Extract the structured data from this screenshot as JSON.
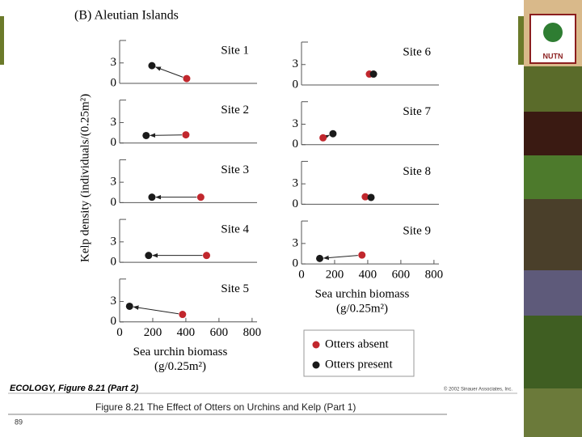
{
  "figure": {
    "title": "(B)  Aleutian Islands",
    "ylabel": "Kelp density (individuals/(0.25m²)",
    "xlabel_line1": "Sea urchin biomass",
    "xlabel_line2": "(g/0.25m²)",
    "legend": [
      {
        "name": "Otters absent",
        "color": "#c1272d"
      },
      {
        "name": "Otters present",
        "color": "#1a1a1a"
      }
    ],
    "credit": "ECOLOGY, Figure 8.21 (Part 2)",
    "copyright": "© 2002 Sinauer Associates, Inc."
  },
  "chart_data": [
    {
      "type": "scatter",
      "title": "Site 1",
      "xlim": [
        0,
        830
      ],
      "ylim": [
        0,
        6.3
      ],
      "yticks": [
        0,
        3
      ],
      "absent": {
        "x": 405,
        "y": 0.7
      },
      "present": {
        "x": 195,
        "y": 2.6
      }
    },
    {
      "type": "scatter",
      "title": "Site 2",
      "xlim": [
        0,
        830
      ],
      "ylim": [
        0,
        6.3
      ],
      "yticks": [
        0,
        3
      ],
      "absent": {
        "x": 400,
        "y": 1.2
      },
      "present": {
        "x": 160,
        "y": 1.1
      }
    },
    {
      "type": "scatter",
      "title": "Site 3",
      "xlim": [
        0,
        830
      ],
      "ylim": [
        0,
        6.3
      ],
      "yticks": [
        0,
        3
      ],
      "absent": {
        "x": 490,
        "y": 0.8
      },
      "present": {
        "x": 195,
        "y": 0.8
      }
    },
    {
      "type": "scatter",
      "title": "Site 4",
      "xlim": [
        0,
        830
      ],
      "ylim": [
        0,
        6.3
      ],
      "yticks": [
        0,
        3
      ],
      "absent": {
        "x": 525,
        "y": 1.0
      },
      "present": {
        "x": 175,
        "y": 1.0
      }
    },
    {
      "type": "scatter",
      "title": "Site 5",
      "xlim": [
        0,
        830
      ],
      "ylim": [
        0,
        6.3
      ],
      "yticks": [
        0,
        3
      ],
      "xticks": [
        0,
        200,
        400,
        600,
        800
      ],
      "absent": {
        "x": 380,
        "y": 1.1
      },
      "present": {
        "x": 60,
        "y": 2.3
      }
    },
    {
      "type": "scatter",
      "title": "Site 6",
      "xlim": [
        0,
        830
      ],
      "ylim": [
        0,
        6.3
      ],
      "yticks": [
        0,
        3
      ],
      "absent": {
        "x": 410,
        "y": 1.6
      },
      "present": {
        "x": 435,
        "y": 1.6
      }
    },
    {
      "type": "scatter",
      "title": "Site 7",
      "xlim": [
        0,
        830
      ],
      "ylim": [
        0,
        6.3
      ],
      "yticks": [
        0,
        3
      ],
      "absent": {
        "x": 130,
        "y": 1.0
      },
      "present": {
        "x": 190,
        "y": 1.6
      }
    },
    {
      "type": "scatter",
      "title": "Site 8",
      "xlim": [
        0,
        830
      ],
      "ylim": [
        0,
        6.3
      ],
      "yticks": [
        0,
        3
      ],
      "absent": {
        "x": 385,
        "y": 1.1
      },
      "present": {
        "x": 420,
        "y": 1.0
      }
    },
    {
      "type": "scatter",
      "title": "Site 9",
      "xlim": [
        0,
        830
      ],
      "ylim": [
        0,
        6.3
      ],
      "yticks": [
        0,
        3
      ],
      "xticks": [
        0,
        200,
        400,
        600,
        800
      ],
      "absent": {
        "x": 365,
        "y": 1.3
      },
      "present": {
        "x": 110,
        "y": 0.8
      }
    }
  ],
  "slide": {
    "caption": "Figure 8.21  The Effect of Otters on Urchins and Kelp (Part 1)",
    "page_number": "89",
    "logo_text": "NUTN"
  }
}
